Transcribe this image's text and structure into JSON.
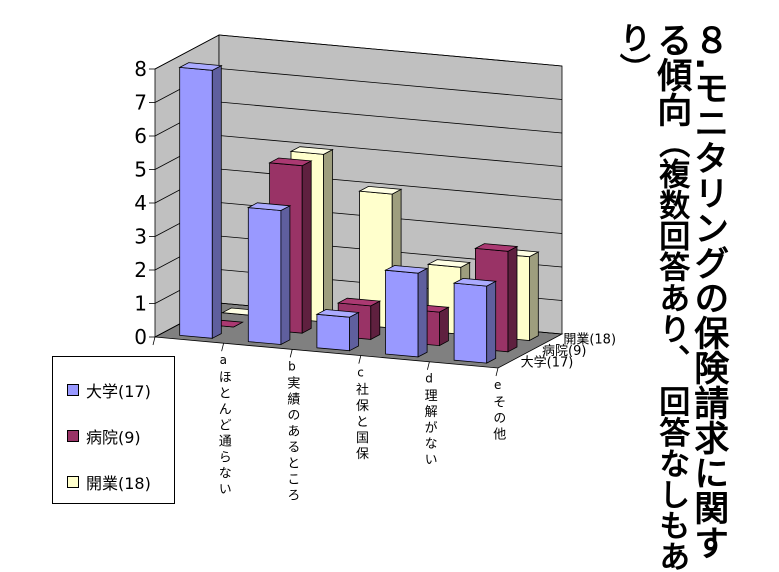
{
  "title": {
    "line1": "８.モニタリングの保険請求に関す",
    "line2_main": "る傾向",
    "line2_sub": "（複数回答あり、 回答なしもあ",
    "line3": "り）"
  },
  "chart_data": {
    "type": "bar",
    "categories": [
      "a\nほとんど通らない",
      "b\n実績のあるところ",
      "c\n社保と国保",
      "d\n理解がない",
      "e\nその他"
    ],
    "x_labels": [
      {
        "letter": "a",
        "text": "ほとんど通らない"
      },
      {
        "letter": "b",
        "text": "実績のあるところ"
      },
      {
        "letter": "c",
        "text": "社保と国保"
      },
      {
        "letter": "d",
        "text": "理解がない"
      },
      {
        "letter": "e",
        "text": "その他"
      }
    ],
    "series": [
      {
        "name": "大学(17)",
        "values": [
          8,
          4,
          1,
          2.5,
          2.3
        ],
        "color": "#9999ff"
      },
      {
        "name": "病院(9)",
        "values": [
          0,
          5,
          1,
          1,
          3
        ],
        "color": "#993366"
      },
      {
        "name": "開業(18)",
        "values": [
          0,
          5,
          4,
          2,
          2.5
        ],
        "color": "#ffffcc"
      }
    ],
    "y_ticks": [
      "0",
      "1",
      "2",
      "3",
      "4",
      "5",
      "6",
      "7",
      "8"
    ],
    "ylim": [
      0,
      8
    ],
    "grid": true,
    "depth_labels": [
      "大学(17)",
      "病院(9)",
      "開業(18)"
    ],
    "legend_position": "bottom-left"
  },
  "legend": {
    "items": [
      {
        "label": "大学(17)",
        "color": "#9999ff"
      },
      {
        "label": "病院(9)",
        "color": "#993366"
      },
      {
        "label": "開業(18)",
        "color": "#ffffcc"
      }
    ]
  },
  "colors": {
    "back_wall": "#c0c0c0",
    "floor": "#808080",
    "outline": "#000000"
  }
}
